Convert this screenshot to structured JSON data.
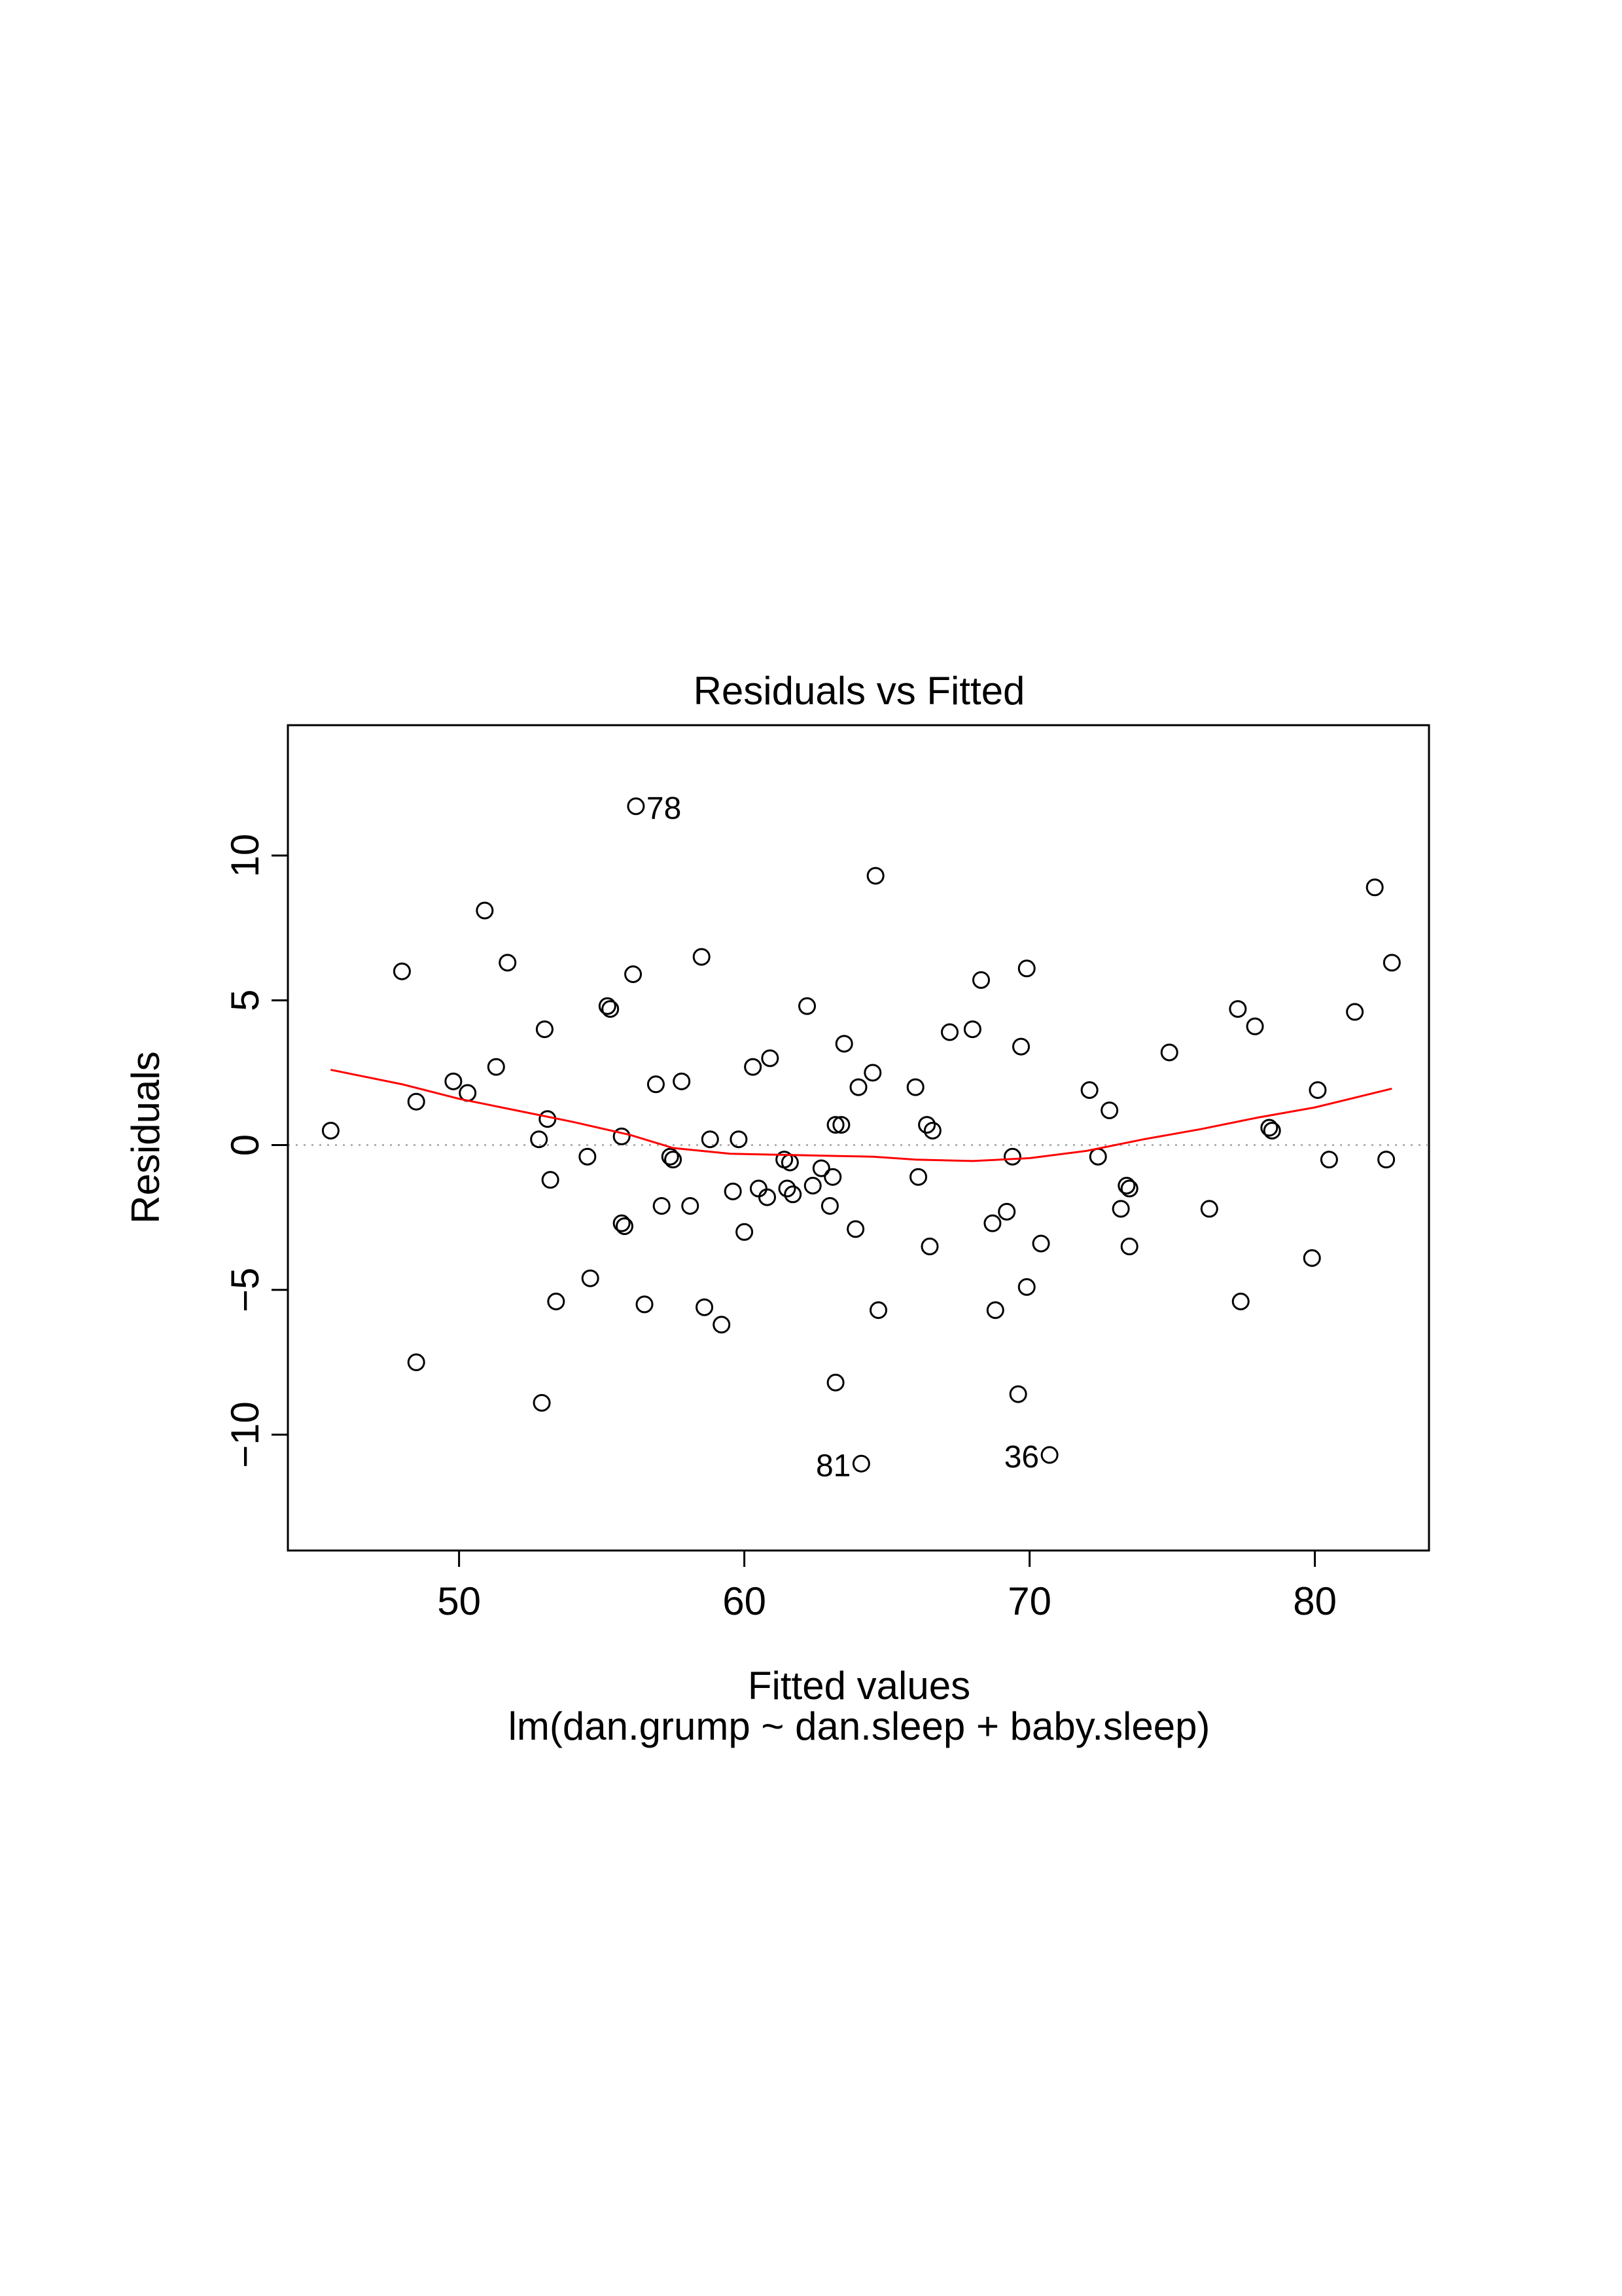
{
  "chart_data": {
    "type": "scatter",
    "title": "Residuals vs Fitted",
    "xlabel": "Fitted values",
    "subtitle": "lm(dan.grump ~ dan.sleep + baby.sleep)",
    "ylabel": "Residuals",
    "xlim": [
      44.0,
      84.0
    ],
    "ylim": [
      -14.0,
      14.5
    ],
    "x_ticks": [
      50,
      60,
      70,
      80
    ],
    "x_tick_labels": [
      "50",
      "60",
      "70",
      "80"
    ],
    "y_ticks": [
      -10,
      -5,
      0,
      5,
      10
    ],
    "y_tick_labels": [
      "−10",
      "−5",
      "0",
      "5",
      "10"
    ],
    "zero_line": 0,
    "grid": false,
    "colors": {
      "points": "#000000",
      "smooth": "#ff0000",
      "zero_line": "#b0b0b0"
    },
    "points": [
      [
        45.5,
        0.5
      ],
      [
        48.0,
        6.0
      ],
      [
        48.5,
        1.5
      ],
      [
        48.5,
        -7.5
      ],
      [
        49.8,
        2.2
      ],
      [
        50.3,
        1.8
      ],
      [
        50.9,
        8.1
      ],
      [
        51.3,
        2.7
      ],
      [
        51.7,
        6.3
      ],
      [
        52.8,
        0.2
      ],
      [
        52.9,
        -8.9
      ],
      [
        53.0,
        4.0
      ],
      [
        53.1,
        0.9
      ],
      [
        53.2,
        -1.2
      ],
      [
        53.4,
        -5.4
      ],
      [
        54.5,
        -0.4
      ],
      [
        54.6,
        -4.6
      ],
      [
        55.2,
        4.8
      ],
      [
        55.3,
        4.7
      ],
      [
        55.7,
        0.3
      ],
      [
        55.7,
        -2.7
      ],
      [
        55.8,
        -2.8
      ],
      [
        56.1,
        5.9
      ],
      [
        56.2,
        11.7
      ],
      [
        56.5,
        -5.5
      ],
      [
        56.9,
        2.1
      ],
      [
        57.1,
        -2.1
      ],
      [
        57.4,
        -0.4
      ],
      [
        57.5,
        -0.5
      ],
      [
        57.8,
        2.2
      ],
      [
        58.1,
        -2.1
      ],
      [
        58.5,
        6.5
      ],
      [
        58.6,
        -5.6
      ],
      [
        58.8,
        0.2
      ],
      [
        59.2,
        -6.2
      ],
      [
        59.6,
        -1.6
      ],
      [
        59.8,
        0.2
      ],
      [
        60.0,
        -3.0
      ],
      [
        60.3,
        2.7
      ],
      [
        60.5,
        -1.5
      ],
      [
        60.8,
        -1.8
      ],
      [
        60.9,
        3.0
      ],
      [
        61.4,
        -0.5
      ],
      [
        61.5,
        -1.5
      ],
      [
        61.6,
        -0.6
      ],
      [
        61.7,
        -1.7
      ],
      [
        62.2,
        4.8
      ],
      [
        62.4,
        -1.4
      ],
      [
        62.7,
        -0.8
      ],
      [
        63.0,
        -2.1
      ],
      [
        63.1,
        -1.1
      ],
      [
        63.2,
        -8.2
      ],
      [
        63.2,
        0.7
      ],
      [
        63.4,
        0.7
      ],
      [
        63.5,
        3.5
      ],
      [
        63.9,
        -2.9
      ],
      [
        64.0,
        2.0
      ],
      [
        64.1,
        -11.0
      ],
      [
        64.5,
        2.5
      ],
      [
        64.6,
        9.3
      ],
      [
        64.7,
        -5.7
      ],
      [
        66.0,
        2.0
      ],
      [
        66.1,
        -1.1
      ],
      [
        66.4,
        0.7
      ],
      [
        66.5,
        -3.5
      ],
      [
        66.6,
        0.5
      ],
      [
        67.2,
        3.9
      ],
      [
        68.0,
        4.0
      ],
      [
        68.3,
        5.7
      ],
      [
        68.7,
        -2.7
      ],
      [
        68.8,
        -5.7
      ],
      [
        69.2,
        -2.3
      ],
      [
        69.4,
        -0.4
      ],
      [
        69.6,
        -8.6
      ],
      [
        69.7,
        3.4
      ],
      [
        69.9,
        6.1
      ],
      [
        69.9,
        -4.9
      ],
      [
        70.4,
        -3.4
      ],
      [
        70.7,
        -10.7
      ],
      [
        72.1,
        1.9
      ],
      [
        72.4,
        -0.4
      ],
      [
        72.8,
        1.2
      ],
      [
        73.2,
        -2.2
      ],
      [
        73.4,
        -1.4
      ],
      [
        73.5,
        -1.5
      ],
      [
        73.5,
        -3.5
      ],
      [
        74.9,
        3.2
      ],
      [
        76.3,
        -2.2
      ],
      [
        77.3,
        4.7
      ],
      [
        77.4,
        -5.4
      ],
      [
        77.9,
        4.1
      ],
      [
        78.4,
        0.6
      ],
      [
        78.5,
        0.5
      ],
      [
        79.9,
        -3.9
      ],
      [
        80.1,
        1.9
      ],
      [
        80.5,
        -0.5
      ],
      [
        81.4,
        4.6
      ],
      [
        82.1,
        8.9
      ],
      [
        82.5,
        -0.5
      ],
      [
        82.7,
        6.3
      ]
    ],
    "smooth_line": [
      [
        45.5,
        2.6
      ],
      [
        48,
        2.1
      ],
      [
        50,
        1.6
      ],
      [
        52,
        1.2
      ],
      [
        54,
        0.8
      ],
      [
        56,
        0.35
      ],
      [
        57.5,
        -0.1
      ],
      [
        59.5,
        -0.3
      ],
      [
        62,
        -0.35
      ],
      [
        64.5,
        -0.4
      ],
      [
        66,
        -0.5
      ],
      [
        68,
        -0.55
      ],
      [
        70,
        -0.45
      ],
      [
        72,
        -0.2
      ],
      [
        74,
        0.2
      ],
      [
        76,
        0.55
      ],
      [
        78,
        0.95
      ],
      [
        80,
        1.3
      ],
      [
        82.7,
        1.95
      ]
    ],
    "annotations": [
      {
        "label": "78",
        "x": 56.2,
        "y": 11.7,
        "side": "right"
      },
      {
        "label": "81",
        "x": 64.1,
        "y": -11.0,
        "side": "left"
      },
      {
        "label": "36",
        "x": 70.7,
        "y": -10.7,
        "side": "left"
      }
    ]
  }
}
